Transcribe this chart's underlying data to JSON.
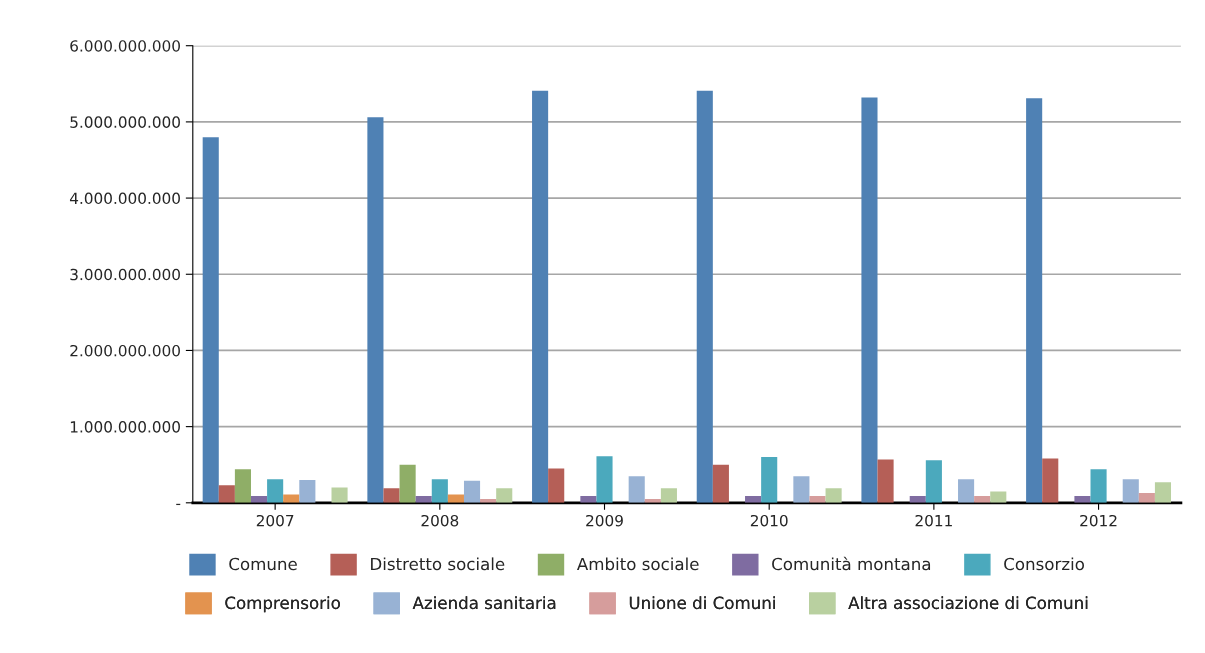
{
  "chart_data": {
    "type": "bar",
    "categories": [
      "2007",
      "2008",
      "2009",
      "2010",
      "2011",
      "2012"
    ],
    "series": [
      {
        "name": "Comune",
        "color": "#4f81b4",
        "values": [
          4800000000,
          5060000000,
          5410000000,
          5410000000,
          5320000000,
          5310000000
        ]
      },
      {
        "name": "Distretto sociale",
        "color": "#b55f57",
        "values": [
          230000000,
          190000000,
          450000000,
          500000000,
          570000000,
          580000000
        ]
      },
      {
        "name": "Ambito sociale",
        "color": "#8fae67",
        "values": [
          440000000,
          500000000,
          null,
          null,
          null,
          null
        ]
      },
      {
        "name": "Comunità montana",
        "color": "#7f6ca1",
        "values": [
          90000000,
          90000000,
          90000000,
          90000000,
          90000000,
          90000000
        ]
      },
      {
        "name": "Consorzio",
        "color": "#4ba9bd",
        "values": [
          310000000,
          310000000,
          610000000,
          600000000,
          560000000,
          440000000
        ]
      },
      {
        "name": "Comprensorio",
        "color": "#e3934f",
        "values": [
          110000000,
          110000000,
          null,
          null,
          null,
          null
        ]
      },
      {
        "name": "Azienda sanitaria",
        "color": "#98b2d4",
        "values": [
          300000000,
          290000000,
          350000000,
          350000000,
          310000000,
          310000000
        ]
      },
      {
        "name": "Unione di Comuni",
        "color": "#d69d9c",
        "values": [
          null,
          50000000,
          50000000,
          90000000,
          90000000,
          130000000
        ]
      },
      {
        "name": "Altra associazione di Comuni",
        "color": "#b9d0a0",
        "values": [
          200000000,
          190000000,
          190000000,
          190000000,
          150000000,
          270000000
        ]
      }
    ],
    "ylim": [
      0,
      6000000000
    ],
    "yticks": [
      {
        "value": 0,
        "label": "-"
      },
      {
        "value": 1000000000,
        "label": "1.000.000.000"
      },
      {
        "value": 2000000000,
        "label": "2.000.000.000"
      },
      {
        "value": 3000000000,
        "label": "3.000.000.000"
      },
      {
        "value": 4000000000,
        "label": "4.000.000.000"
      },
      {
        "value": 5000000000,
        "label": "5.000.000.000"
      },
      {
        "value": 6000000000,
        "label": "6.000.000.000"
      }
    ],
    "grid": "y",
    "legend": "bottom"
  }
}
